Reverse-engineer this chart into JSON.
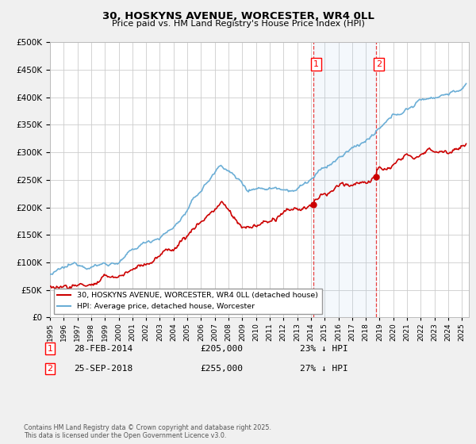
{
  "title": "30, HOSKYNS AVENUE, WORCESTER, WR4 0LL",
  "subtitle": "Price paid vs. HM Land Registry's House Price Index (HPI)",
  "ytick_values": [
    0,
    50000,
    100000,
    150000,
    200000,
    250000,
    300000,
    350000,
    400000,
    450000,
    500000
  ],
  "ylim": [
    0,
    500000
  ],
  "xlim_start": 1995.0,
  "xlim_end": 2025.5,
  "hpi_color": "#6baed6",
  "price_color": "#cc0000",
  "vline1_x": 2014.17,
  "vline2_x": 2018.73,
  "vline_color": "#e84040",
  "purchase1_date": "28-FEB-2014",
  "purchase1_price": 205000,
  "purchase1_pct": "23%",
  "purchase2_date": "25-SEP-2018",
  "purchase2_price": 255000,
  "purchase2_pct": "27%",
  "legend_label1": "30, HOSKYNS AVENUE, WORCESTER, WR4 0LL (detached house)",
  "legend_label2": "HPI: Average price, detached house, Worcester",
  "footnote": "Contains HM Land Registry data © Crown copyright and database right 2025.\nThis data is licensed under the Open Government Licence v3.0.",
  "background_color": "#f0f0f0",
  "plot_bg_color": "#ffffff",
  "grid_color": "#cccccc"
}
